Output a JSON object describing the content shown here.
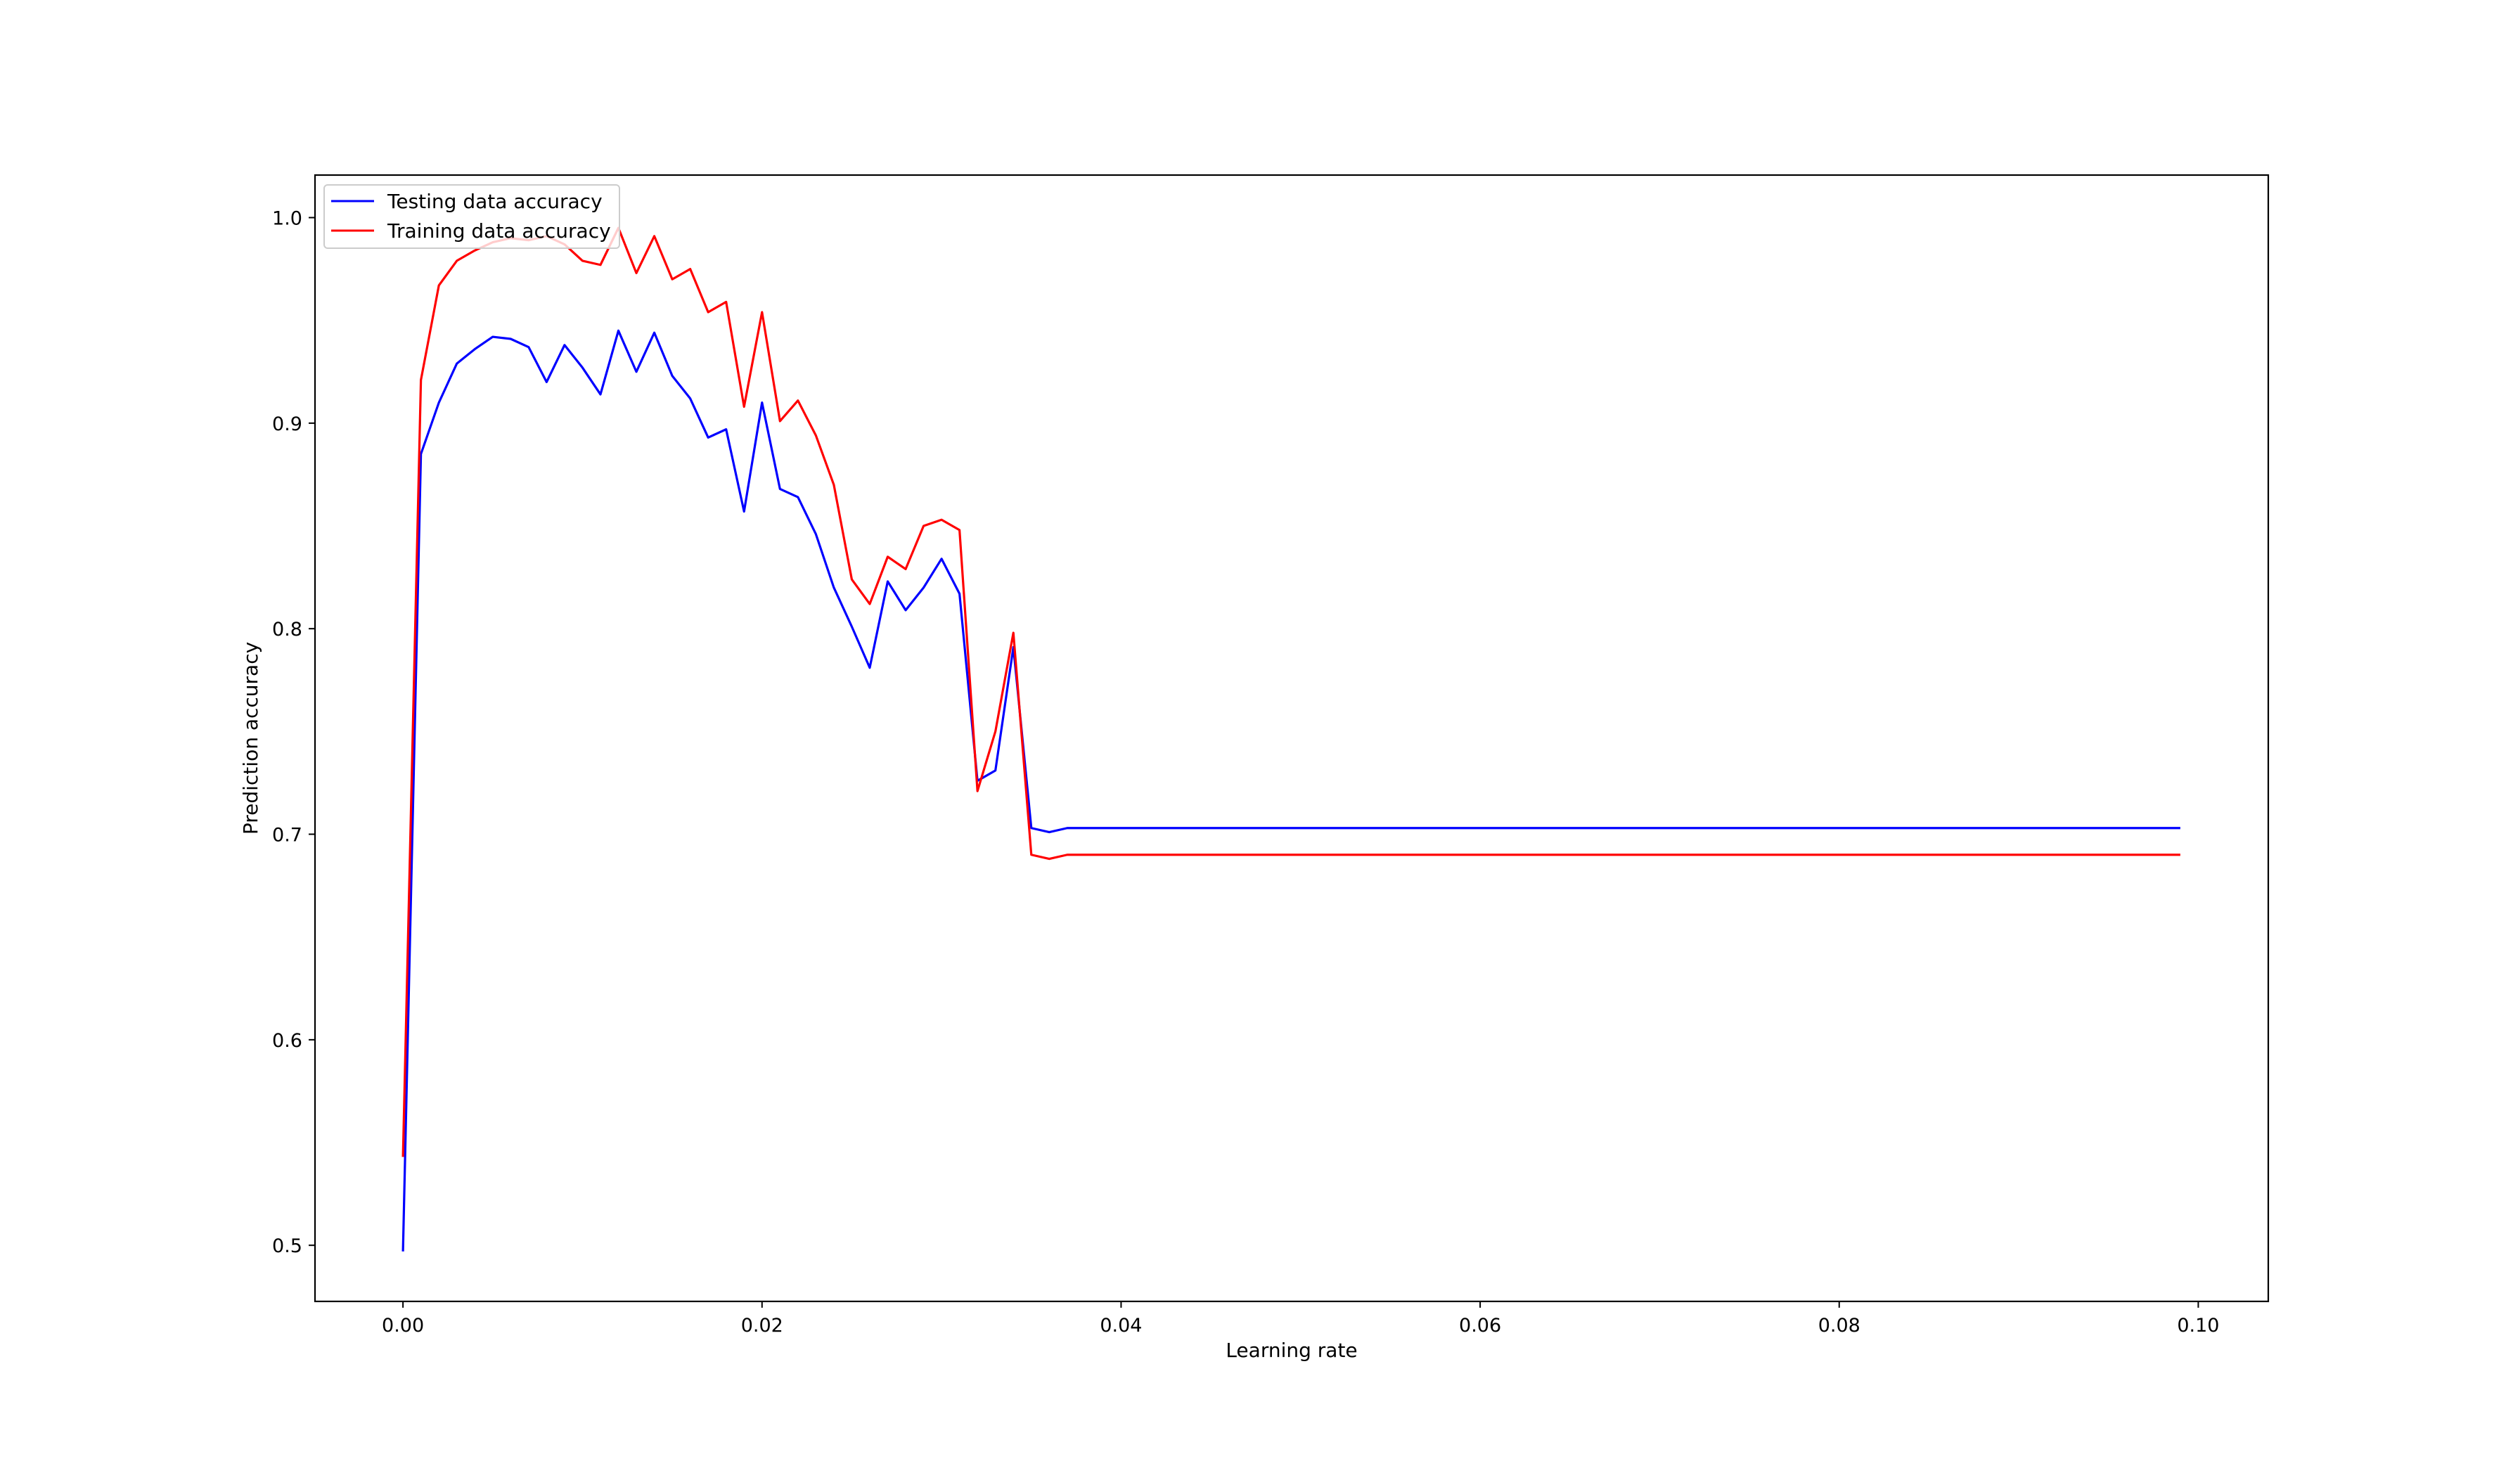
{
  "chart_data": {
    "type": "line",
    "title": "",
    "xlabel": "Learning rate",
    "ylabel": "Prediction accuracy",
    "xlim": [
      -0.0049,
      0.1039
    ],
    "ylim": [
      0.4727,
      1.0207
    ],
    "xticks": [
      0.0,
      0.02,
      0.04,
      0.06,
      0.08,
      0.1
    ],
    "xtick_labels": [
      "0.00",
      "0.02",
      "0.04",
      "0.06",
      "0.08",
      "0.10"
    ],
    "yticks": [
      0.5,
      0.6,
      0.7,
      0.8,
      0.9,
      1.0
    ],
    "ytick_labels": [
      "0.5",
      "0.6",
      "0.7",
      "0.8",
      "0.9",
      "1.0"
    ],
    "grid": false,
    "legend_position": "upper-left",
    "x": {
      "start": 0.0,
      "step": 0.001,
      "count": 100
    },
    "series": [
      {
        "name": "Testing data accuracy",
        "color": "#0000ff",
        "values": [
          0.497,
          0.885,
          0.91,
          0.929,
          0.936,
          0.942,
          0.941,
          0.937,
          0.92,
          0.938,
          0.927,
          0.914,
          0.945,
          0.925,
          0.944,
          0.923,
          0.912,
          0.893,
          0.897,
          0.857,
          0.91,
          0.868,
          0.864,
          0.846,
          0.82,
          0.801,
          0.781,
          0.823,
          0.809,
          0.82,
          0.834,
          0.817,
          0.726,
          0.731,
          0.791,
          0.703,
          0.701,
          0.703,
          0.703,
          0.703,
          0.703,
          0.703,
          0.703,
          0.703,
          0.703,
          0.703,
          0.703,
          0.703,
          0.703,
          0.703,
          0.703,
          0.703,
          0.703,
          0.703,
          0.703,
          0.703,
          0.703,
          0.703,
          0.703,
          0.703,
          0.703,
          0.703,
          0.703,
          0.703,
          0.703,
          0.703,
          0.703,
          0.703,
          0.703,
          0.703,
          0.703,
          0.703,
          0.703,
          0.703,
          0.703,
          0.703,
          0.703,
          0.703,
          0.703,
          0.703,
          0.703,
          0.703,
          0.703,
          0.703,
          0.703,
          0.703,
          0.703,
          0.703,
          0.703,
          0.703,
          0.703,
          0.703,
          0.703,
          0.703,
          0.703,
          0.703,
          0.703,
          0.703,
          0.703,
          0.703
        ]
      },
      {
        "name": "Training data accuracy",
        "color": "#ff0000",
        "values": [
          0.543,
          0.921,
          0.967,
          0.979,
          0.984,
          0.988,
          0.99,
          0.989,
          0.991,
          0.987,
          0.979,
          0.977,
          0.995,
          0.973,
          0.991,
          0.97,
          0.975,
          0.954,
          0.959,
          0.908,
          0.954,
          0.901,
          0.911,
          0.894,
          0.87,
          0.824,
          0.812,
          0.835,
          0.829,
          0.85,
          0.853,
          0.848,
          0.721,
          0.75,
          0.798,
          0.69,
          0.688,
          0.69,
          0.69,
          0.69,
          0.69,
          0.69,
          0.69,
          0.69,
          0.69,
          0.69,
          0.69,
          0.69,
          0.69,
          0.69,
          0.69,
          0.69,
          0.69,
          0.69,
          0.69,
          0.69,
          0.69,
          0.69,
          0.69,
          0.69,
          0.69,
          0.69,
          0.69,
          0.69,
          0.69,
          0.69,
          0.69,
          0.69,
          0.69,
          0.69,
          0.69,
          0.69,
          0.69,
          0.69,
          0.69,
          0.69,
          0.69,
          0.69,
          0.69,
          0.69,
          0.69,
          0.69,
          0.69,
          0.69,
          0.69,
          0.69,
          0.69,
          0.69,
          0.69,
          0.69,
          0.69,
          0.69,
          0.69,
          0.69,
          0.69,
          0.69,
          0.69,
          0.69,
          0.69,
          0.69
        ]
      }
    ]
  }
}
